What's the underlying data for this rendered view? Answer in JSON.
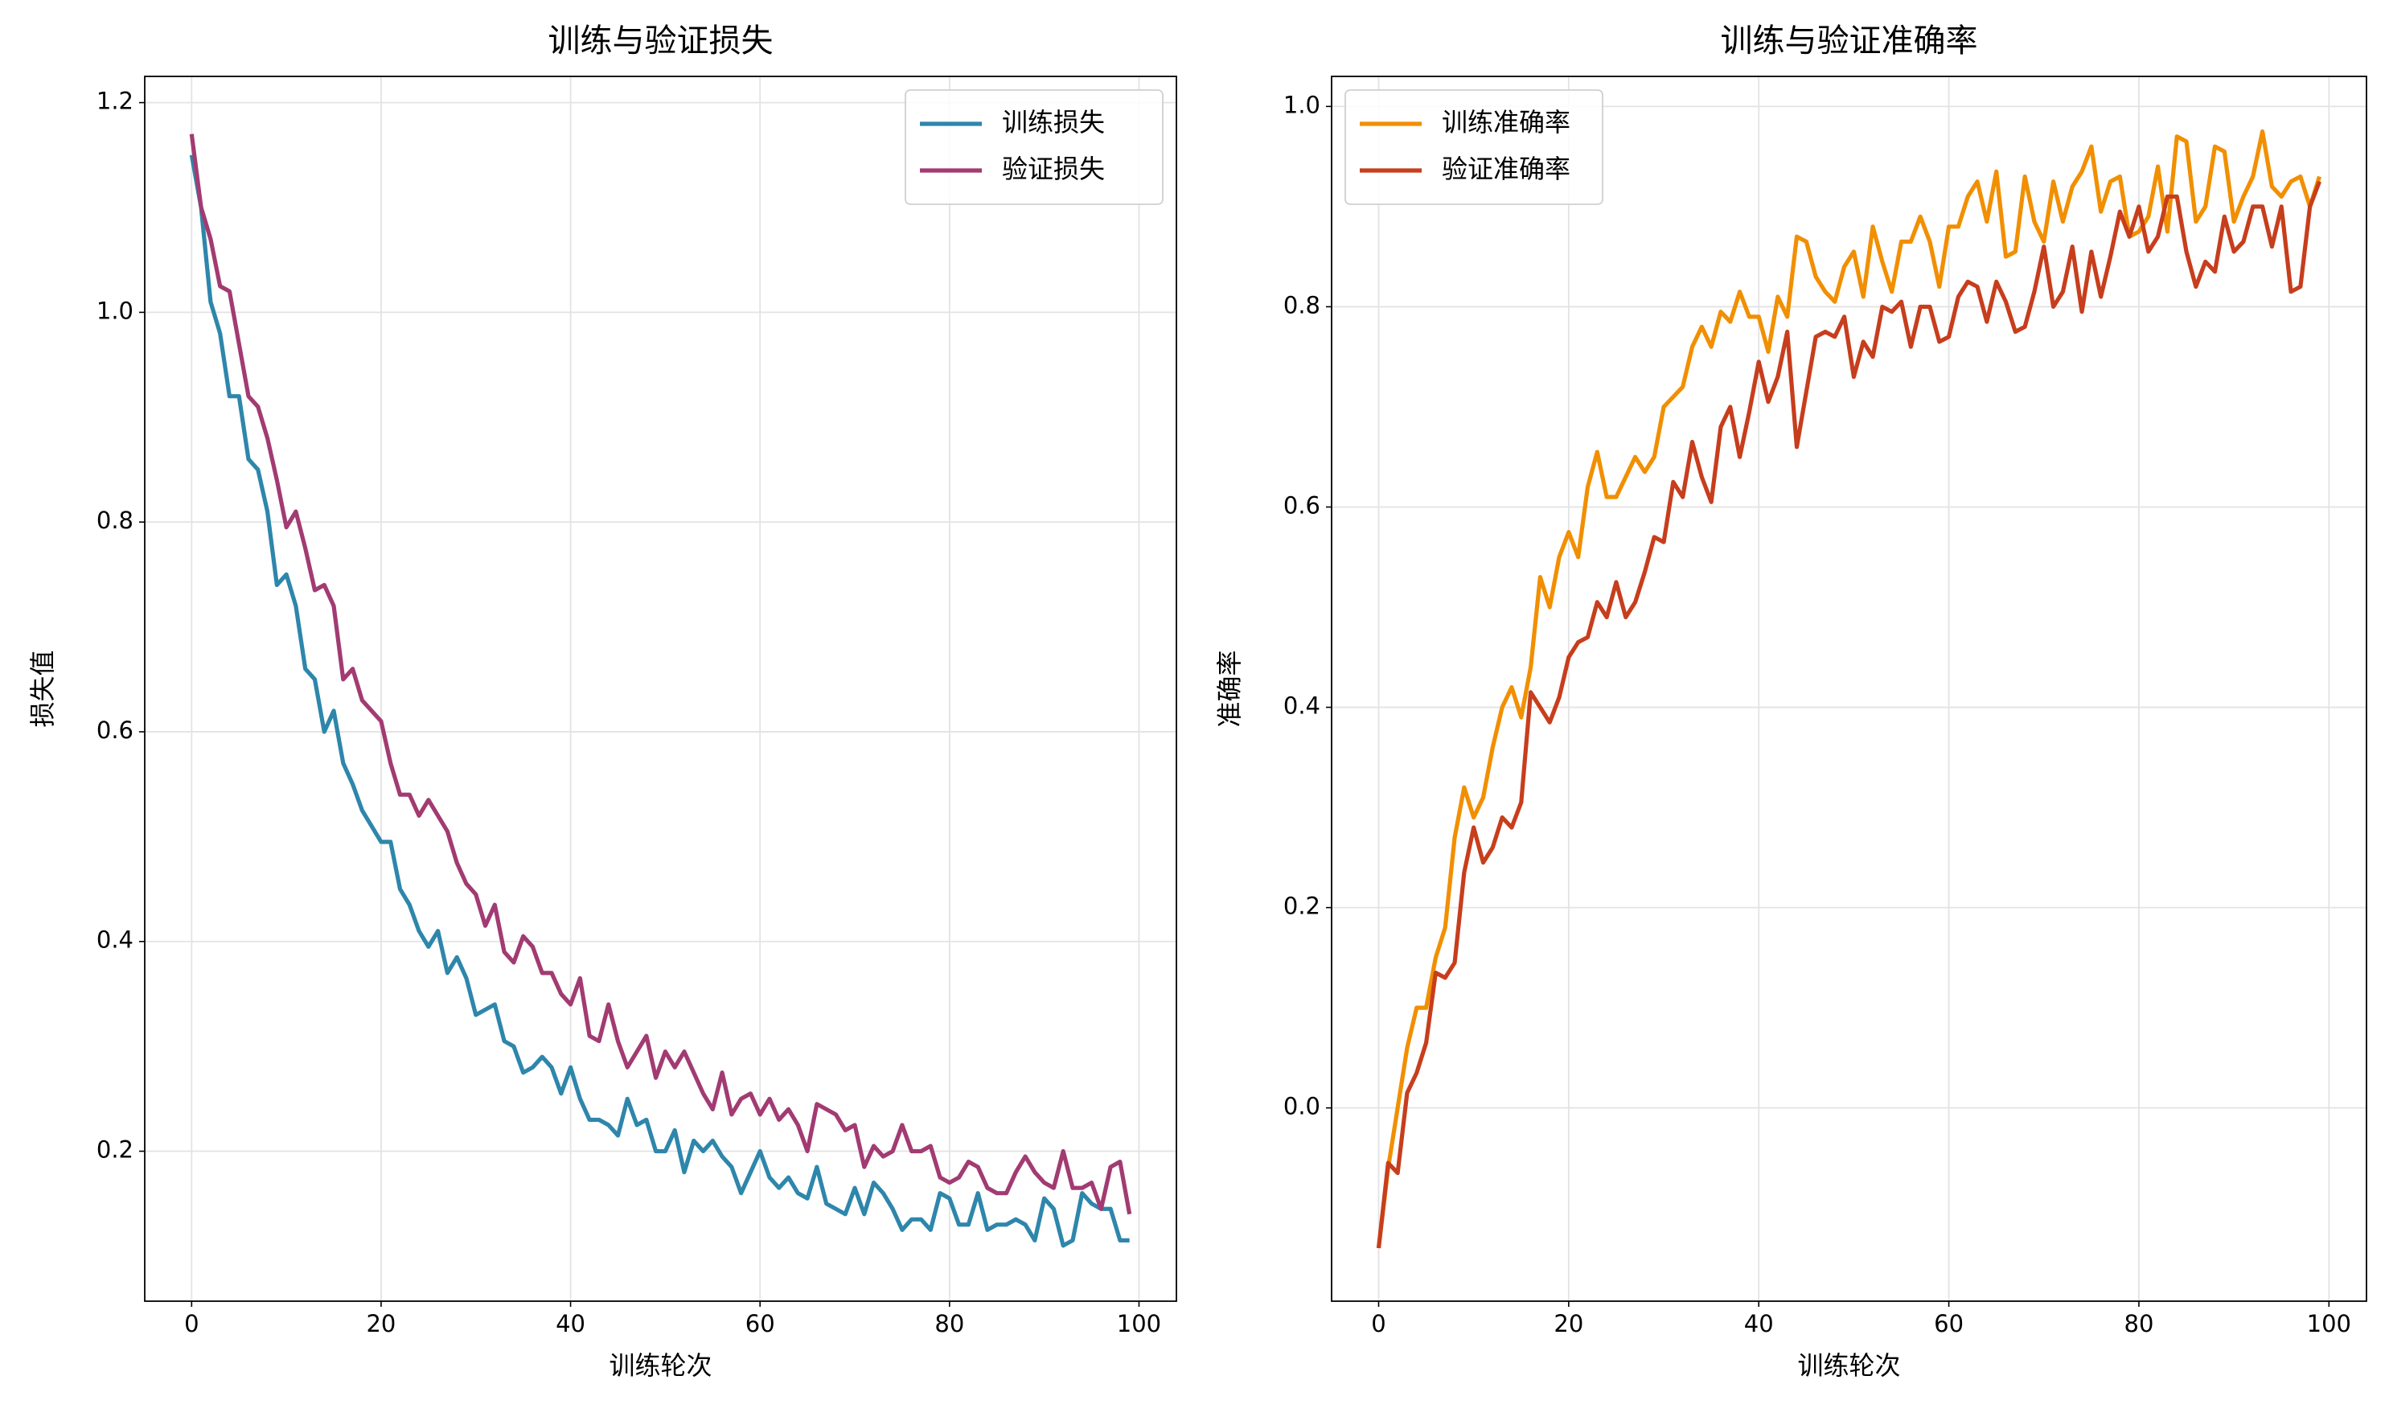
{
  "chart_data": [
    {
      "type": "line",
      "title": "训练与验证损失",
      "xlabel": "训练轮次",
      "ylabel": "损失值",
      "x": [
        0,
        1,
        2,
        3,
        4,
        5,
        6,
        7,
        8,
        9,
        10,
        11,
        12,
        13,
        14,
        15,
        16,
        17,
        18,
        19,
        20,
        21,
        22,
        23,
        24,
        25,
        26,
        27,
        28,
        29,
        30,
        31,
        32,
        33,
        34,
        35,
        36,
        37,
        38,
        39,
        40,
        41,
        42,
        43,
        44,
        45,
        46,
        47,
        48,
        49,
        50,
        51,
        52,
        53,
        54,
        55,
        56,
        57,
        58,
        59,
        60,
        61,
        62,
        63,
        64,
        65,
        66,
        67,
        68,
        69,
        70,
        71,
        72,
        73,
        74,
        75,
        76,
        77,
        78,
        79,
        80,
        81,
        82,
        83,
        84,
        85,
        86,
        87,
        88,
        89,
        90,
        91,
        92,
        93,
        94,
        95,
        96,
        97,
        98,
        99
      ],
      "series": [
        {
          "name": "训练损失",
          "color": "#2E86AB",
          "values": [
            1.15,
            1.1,
            1.01,
            0.98,
            0.92,
            0.92,
            0.86,
            0.85,
            0.81,
            0.74,
            0.75,
            0.72,
            0.66,
            0.65,
            0.6,
            0.62,
            0.57,
            0.55,
            0.525,
            0.51,
            0.495,
            0.495,
            0.45,
            0.435,
            0.41,
            0.395,
            0.41,
            0.37,
            0.385,
            0.365,
            0.33,
            0.335,
            0.34,
            0.305,
            0.3,
            0.275,
            0.28,
            0.29,
            0.28,
            0.255,
            0.28,
            0.25,
            0.23,
            0.23,
            0.225,
            0.215,
            0.25,
            0.225,
            0.23,
            0.2,
            0.2,
            0.22,
            0.18,
            0.21,
            0.2,
            0.21,
            0.195,
            0.185,
            0.16,
            0.18,
            0.2,
            0.175,
            0.165,
            0.175,
            0.16,
            0.155,
            0.185,
            0.15,
            0.145,
            0.14,
            0.165,
            0.14,
            0.17,
            0.16,
            0.145,
            0.125,
            0.135,
            0.135,
            0.125,
            0.16,
            0.155,
            0.13,
            0.13,
            0.16,
            0.125,
            0.13,
            0.13,
            0.135,
            0.13,
            0.115,
            0.155,
            0.145,
            0.11,
            0.115,
            0.16,
            0.15,
            0.145,
            0.145,
            0.115,
            0.115
          ]
        },
        {
          "name": "验证损失",
          "color": "#A23B72",
          "values": [
            1.17,
            1.1,
            1.07,
            1.025,
            1.02,
            0.97,
            0.92,
            0.91,
            0.88,
            0.84,
            0.795,
            0.81,
            0.775,
            0.735,
            0.74,
            0.72,
            0.65,
            0.66,
            0.63,
            0.62,
            0.61,
            0.57,
            0.54,
            0.54,
            0.52,
            0.535,
            0.52,
            0.505,
            0.475,
            0.455,
            0.445,
            0.415,
            0.435,
            0.39,
            0.38,
            0.405,
            0.395,
            0.37,
            0.37,
            0.35,
            0.34,
            0.365,
            0.31,
            0.305,
            0.34,
            0.305,
            0.28,
            0.295,
            0.31,
            0.27,
            0.295,
            0.28,
            0.295,
            0.275,
            0.255,
            0.24,
            0.275,
            0.235,
            0.25,
            0.255,
            0.235,
            0.25,
            0.23,
            0.24,
            0.225,
            0.2,
            0.245,
            0.24,
            0.235,
            0.22,
            0.225,
            0.185,
            0.205,
            0.195,
            0.2,
            0.225,
            0.2,
            0.2,
            0.205,
            0.175,
            0.17,
            0.175,
            0.19,
            0.185,
            0.165,
            0.16,
            0.16,
            0.18,
            0.195,
            0.18,
            0.17,
            0.165,
            0.2,
            0.165,
            0.165,
            0.17,
            0.145,
            0.185,
            0.19,
            0.14
          ]
        }
      ],
      "xlim": [
        -4.95,
        103.95
      ],
      "xticks": [
        0,
        20,
        40,
        60,
        80,
        100
      ],
      "ylim": [
        0.057,
        1.225
      ],
      "yticks": [
        0.2,
        0.4,
        0.6,
        0.8,
        {
          "value": 1,
          "label": "1.0"
        },
        1.2
      ],
      "grid": true,
      "legend": "upper right"
    },
    {
      "type": "line",
      "title": "训练与验证准确率",
      "xlabel": "训练轮次",
      "ylabel": "准确率",
      "x": [
        0,
        1,
        2,
        3,
        4,
        5,
        6,
        7,
        8,
        9,
        10,
        11,
        12,
        13,
        14,
        15,
        16,
        17,
        18,
        19,
        20,
        21,
        22,
        23,
        24,
        25,
        26,
        27,
        28,
        29,
        30,
        31,
        32,
        33,
        34,
        35,
        36,
        37,
        38,
        39,
        40,
        41,
        42,
        43,
        44,
        45,
        46,
        47,
        48,
        49,
        50,
        51,
        52,
        53,
        54,
        55,
        56,
        57,
        58,
        59,
        60,
        61,
        62,
        63,
        64,
        65,
        66,
        67,
        68,
        69,
        70,
        71,
        72,
        73,
        74,
        75,
        76,
        77,
        78,
        79,
        80,
        81,
        82,
        83,
        84,
        85,
        86,
        87,
        88,
        89,
        90,
        91,
        92,
        93,
        94,
        95,
        96,
        97,
        98,
        99
      ],
      "series": [
        {
          "name": "训练准确率",
          "color": "#F18F01",
          "values": [
            -0.14,
            -0.06,
            0.0,
            0.06,
            0.1,
            0.1,
            0.15,
            0.18,
            0.27,
            0.32,
            0.29,
            0.31,
            0.36,
            0.4,
            0.42,
            0.39,
            0.44,
            0.53,
            0.5,
            0.55,
            0.575,
            0.55,
            0.62,
            0.655,
            0.61,
            0.61,
            0.63,
            0.65,
            0.635,
            0.65,
            0.7,
            0.71,
            0.72,
            0.76,
            0.78,
            0.76,
            0.795,
            0.785,
            0.815,
            0.79,
            0.79,
            0.755,
            0.81,
            0.79,
            0.87,
            0.865,
            0.83,
            0.815,
            0.805,
            0.84,
            0.855,
            0.81,
            0.88,
            0.845,
            0.815,
            0.865,
            0.865,
            0.89,
            0.865,
            0.82,
            0.88,
            0.88,
            0.91,
            0.925,
            0.885,
            0.935,
            0.85,
            0.855,
            0.93,
            0.885,
            0.865,
            0.925,
            0.885,
            0.92,
            0.935,
            0.96,
            0.895,
            0.925,
            0.93,
            0.87,
            0.875,
            0.89,
            0.94,
            0.875,
            0.97,
            0.965,
            0.885,
            0.9,
            0.96,
            0.955,
            0.885,
            0.91,
            0.93,
            0.975,
            0.92,
            0.91,
            0.925,
            0.93,
            0.9,
            0.93
          ]
        },
        {
          "name": "验证准确率",
          "color": "#C73E1D",
          "values": [
            -0.14,
            -0.055,
            -0.065,
            0.015,
            0.035,
            0.065,
            0.135,
            0.13,
            0.145,
            0.235,
            0.28,
            0.245,
            0.26,
            0.29,
            0.28,
            0.305,
            0.415,
            0.4,
            0.385,
            0.41,
            0.45,
            0.465,
            0.47,
            0.505,
            0.49,
            0.525,
            0.49,
            0.505,
            0.535,
            0.57,
            0.565,
            0.625,
            0.61,
            0.665,
            0.63,
            0.605,
            0.68,
            0.7,
            0.65,
            0.695,
            0.745,
            0.705,
            0.73,
            0.775,
            0.66,
            0.715,
            0.77,
            0.775,
            0.77,
            0.79,
            0.73,
            0.765,
            0.75,
            0.8,
            0.795,
            0.805,
            0.76,
            0.8,
            0.8,
            0.765,
            0.77,
            0.81,
            0.825,
            0.82,
            0.785,
            0.825,
            0.805,
            0.775,
            0.78,
            0.815,
            0.86,
            0.8,
            0.815,
            0.86,
            0.795,
            0.855,
            0.81,
            0.85,
            0.895,
            0.87,
            0.9,
            0.855,
            0.87,
            0.91,
            0.91,
            0.855,
            0.82,
            0.845,
            0.835,
            0.89,
            0.855,
            0.865,
            0.9,
            0.9,
            0.86,
            0.9,
            0.815,
            0.82,
            0.9,
            0.925
          ]
        }
      ],
      "xlim": [
        -4.95,
        103.95
      ],
      "xticks": [
        0,
        20,
        40,
        60,
        80,
        100
      ],
      "ylim": [
        -0.193,
        1.03
      ],
      "yticks": [
        {
          "value": 0,
          "label": "0.0"
        },
        0.2,
        0.4,
        0.6,
        0.8,
        {
          "value": 1,
          "label": "1.0"
        }
      ],
      "grid": true,
      "legend": "upper left"
    }
  ]
}
